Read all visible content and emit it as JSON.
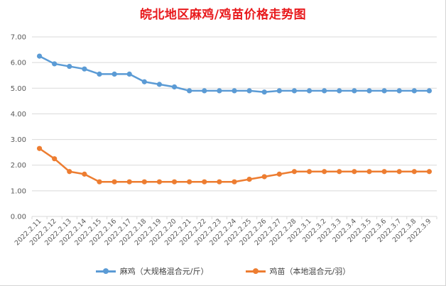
{
  "chart_data": {
    "type": "line",
    "title": "皖北地区麻鸡/鸡苗价格走势图",
    "categories": [
      "2022.2.11",
      "2022.2.12",
      "2022.2.13",
      "2022.2.14",
      "2022.2.15",
      "2022.2.16",
      "2022.2.17",
      "2022.2.18",
      "2022.2.19",
      "2022.2.20",
      "2022.2.21",
      "2022.2.22",
      "2022.2.23",
      "2022.2.24",
      "2022.2.25",
      "2022.2.26",
      "2022.2.27",
      "2022.2.28",
      "2022.3.1",
      "2022.3.2",
      "2022.3.3",
      "2022.3.4",
      "2022.3.5",
      "2022.3.6",
      "2022.3.7",
      "2022.3.8",
      "2022.3.9"
    ],
    "series": [
      {
        "name": "麻鸡（大规格混合元/斤）",
        "color": "#5b9bd5",
        "values": [
          6.25,
          5.95,
          5.85,
          5.75,
          5.55,
          5.55,
          5.55,
          5.25,
          5.15,
          5.05,
          4.9,
          4.9,
          4.9,
          4.9,
          4.9,
          4.85,
          4.9,
          4.9,
          4.9,
          4.9,
          4.9,
          4.9,
          4.9,
          4.9,
          4.9,
          4.9,
          4.9
        ]
      },
      {
        "name": "鸡苗（本地混合元/羽）",
        "color": "#ed7d31",
        "values": [
          2.65,
          2.25,
          1.75,
          1.65,
          1.35,
          1.35,
          1.35,
          1.35,
          1.35,
          1.35,
          1.35,
          1.35,
          1.35,
          1.35,
          1.45,
          1.55,
          1.65,
          1.75,
          1.75,
          1.75,
          1.75,
          1.75,
          1.75,
          1.75,
          1.75,
          1.75,
          1.75
        ]
      }
    ],
    "yticks": [
      "0.00",
      "1.00",
      "2.00",
      "3.00",
      "4.00",
      "5.00",
      "6.00",
      "7.00"
    ],
    "ylim": [
      0,
      7
    ],
    "grid": true,
    "legend_position": "bottom"
  }
}
